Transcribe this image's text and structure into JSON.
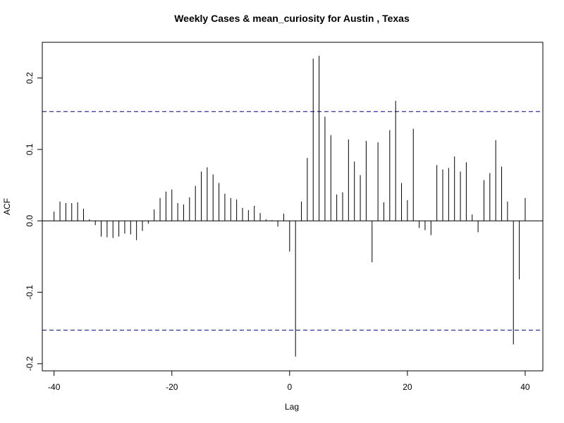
{
  "chart_data": {
    "type": "bar",
    "subtype": "cross-correlation-function",
    "title": "Weekly Cases & mean_curiosity for Austin , Texas",
    "xlabel": "Lag",
    "ylabel": "ACF",
    "xlim": [
      -42,
      43
    ],
    "ylim": [
      -0.21,
      0.25
    ],
    "x_ticks": [
      -40,
      -20,
      0,
      20,
      40
    ],
    "x_tick_labels": [
      "-40",
      "-20",
      "0",
      "20",
      "40"
    ],
    "y_ticks": [
      -0.2,
      -0.1,
      0.0,
      0.1,
      0.2
    ],
    "y_tick_labels": [
      "-0.2",
      "-0.1",
      "0.0",
      "0.1",
      "0.2"
    ],
    "confidence_bound": 0.153,
    "grid": false,
    "legend": "none",
    "colors": {
      "bars": "#000000",
      "confidence_lines": "#00008b",
      "zero_line": "#000000"
    },
    "series": [
      {
        "lags": [
          -40,
          -39,
          -38,
          -37,
          -36,
          -35,
          -34,
          -33,
          -32,
          -31,
          -30,
          -29,
          -28,
          -27,
          -26,
          -25,
          -24,
          -23,
          -22,
          -21,
          -20,
          -19,
          -18,
          -17,
          -16,
          -15,
          -14,
          -13,
          -12,
          -11,
          -10,
          -9,
          -8,
          -7,
          -6,
          -5,
          -4,
          -3,
          -2,
          -1,
          0,
          1,
          2,
          3,
          4,
          5,
          6,
          7,
          8,
          9,
          10,
          11,
          12,
          13,
          14,
          15,
          16,
          17,
          18,
          19,
          20,
          21,
          22,
          23,
          24,
          25,
          26,
          27,
          28,
          29,
          30,
          31,
          32,
          33,
          34,
          35,
          36,
          37,
          38,
          39,
          40
        ],
        "values": [
          0.013,
          0.027,
          0.025,
          0.025,
          0.026,
          0.017,
          0.002,
          -0.006,
          -0.022,
          -0.023,
          -0.024,
          -0.022,
          -0.018,
          -0.019,
          -0.027,
          -0.014,
          -0.004,
          0.016,
          0.032,
          0.041,
          0.044,
          0.025,
          0.023,
          0.033,
          0.049,
          0.069,
          0.075,
          0.065,
          0.053,
          0.038,
          0.032,
          0.03,
          0.018,
          0.015,
          0.021,
          0.011,
          0.002,
          0.001,
          -0.008,
          0.01,
          -0.043,
          -0.19,
          0.027,
          0.088,
          0.227,
          0.231,
          0.146,
          0.12,
          0.037,
          0.04,
          0.114,
          0.083,
          0.064,
          0.112,
          -0.058,
          0.11,
          0.026,
          0.127,
          0.168,
          0.053,
          0.029,
          0.129,
          -0.01,
          -0.013,
          -0.02,
          0.078,
          0.072,
          0.074,
          0.09,
          0.069,
          0.082,
          0.009,
          -0.016,
          0.057,
          0.067,
          0.113,
          0.076,
          0.027,
          -0.173,
          -0.082,
          0.032
        ]
      }
    ]
  }
}
